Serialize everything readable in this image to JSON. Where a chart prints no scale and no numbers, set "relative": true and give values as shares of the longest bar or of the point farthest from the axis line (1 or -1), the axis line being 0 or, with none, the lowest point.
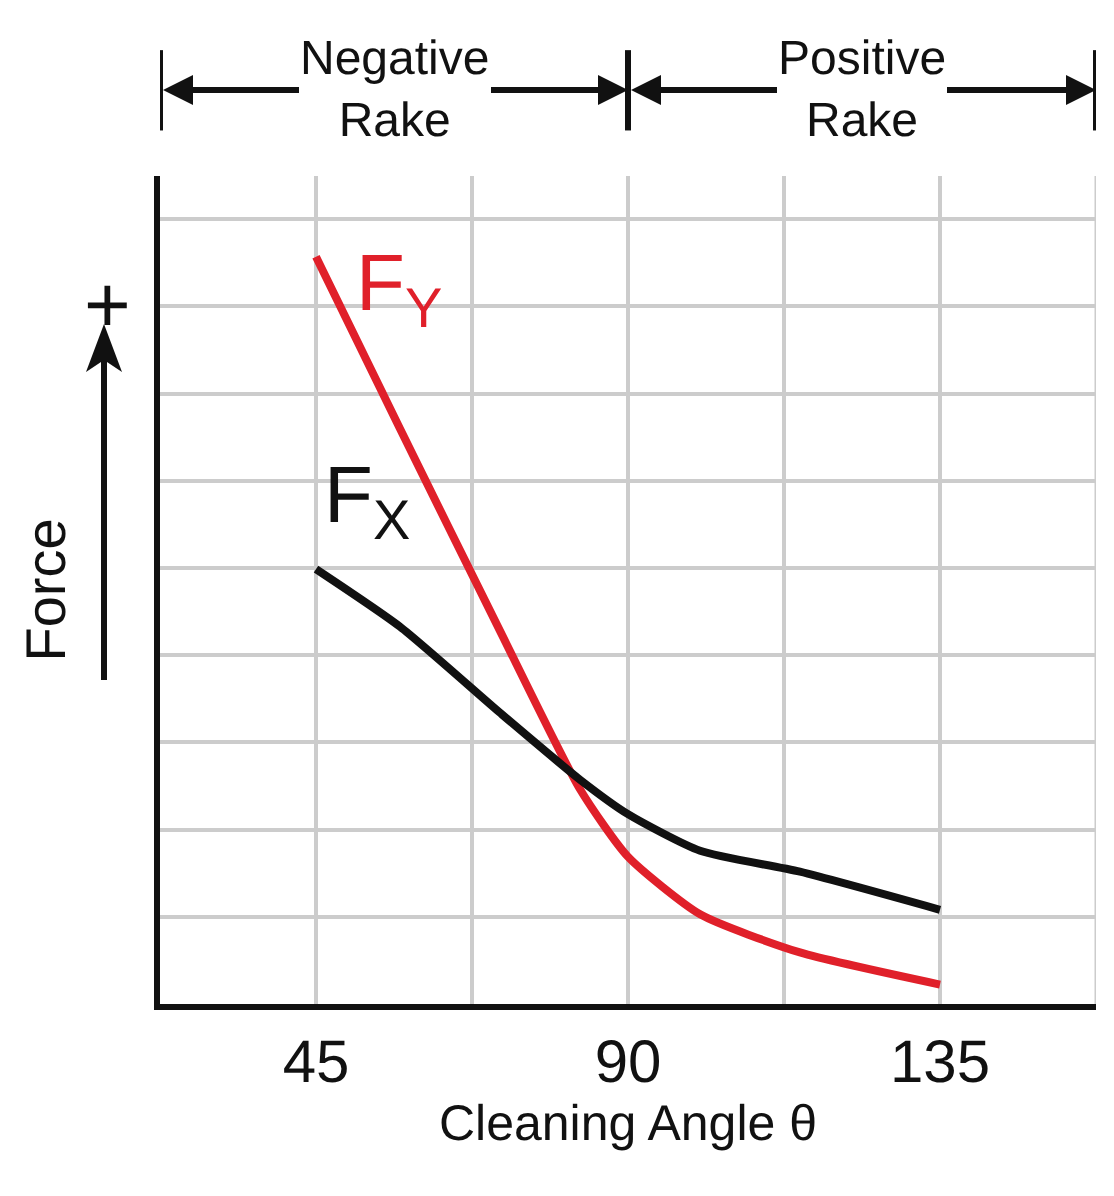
{
  "chart_data": {
    "type": "line",
    "relative": true,
    "xlabel": "Cleaning Angle θ",
    "ylabel": "Force",
    "xlim": [
      22.5,
      157.5
    ],
    "xticks": [
      {
        "value": 22.5,
        "label": null
      },
      45,
      {
        "value": 67.5,
        "label": null
      },
      90,
      {
        "value": 112.5,
        "label": null
      },
      135,
      {
        "value": 157.5,
        "label": null
      }
    ],
    "grid": true,
    "legend": false,
    "marker": "none",
    "line_style": "solid",
    "annotations": [
      "Negative\nRake",
      "Positive\nRake",
      "+"
    ],
    "series": [
      {
        "name": "F$_{Y}$",
        "color": "#e0202a",
        "x": [
          45,
          57.1,
          71.5,
          83.1,
          90,
          100.4,
          114.8,
          135
        ],
        "values": [
          1,
          0.77,
          0.5,
          0.287,
          0.197,
          0.12,
          0.069,
          0.026
        ]
      },
      {
        "name": "F$_{X}$",
        "color": "#111111",
        "x": [
          45,
          57.1,
          71.5,
          83.1,
          90,
          100.4,
          114.8,
          135
        ],
        "values": [
          0.582,
          0.505,
          0.39,
          0.3,
          0.254,
          0.205,
          0.177,
          0.126
        ]
      }
    ]
  }
}
